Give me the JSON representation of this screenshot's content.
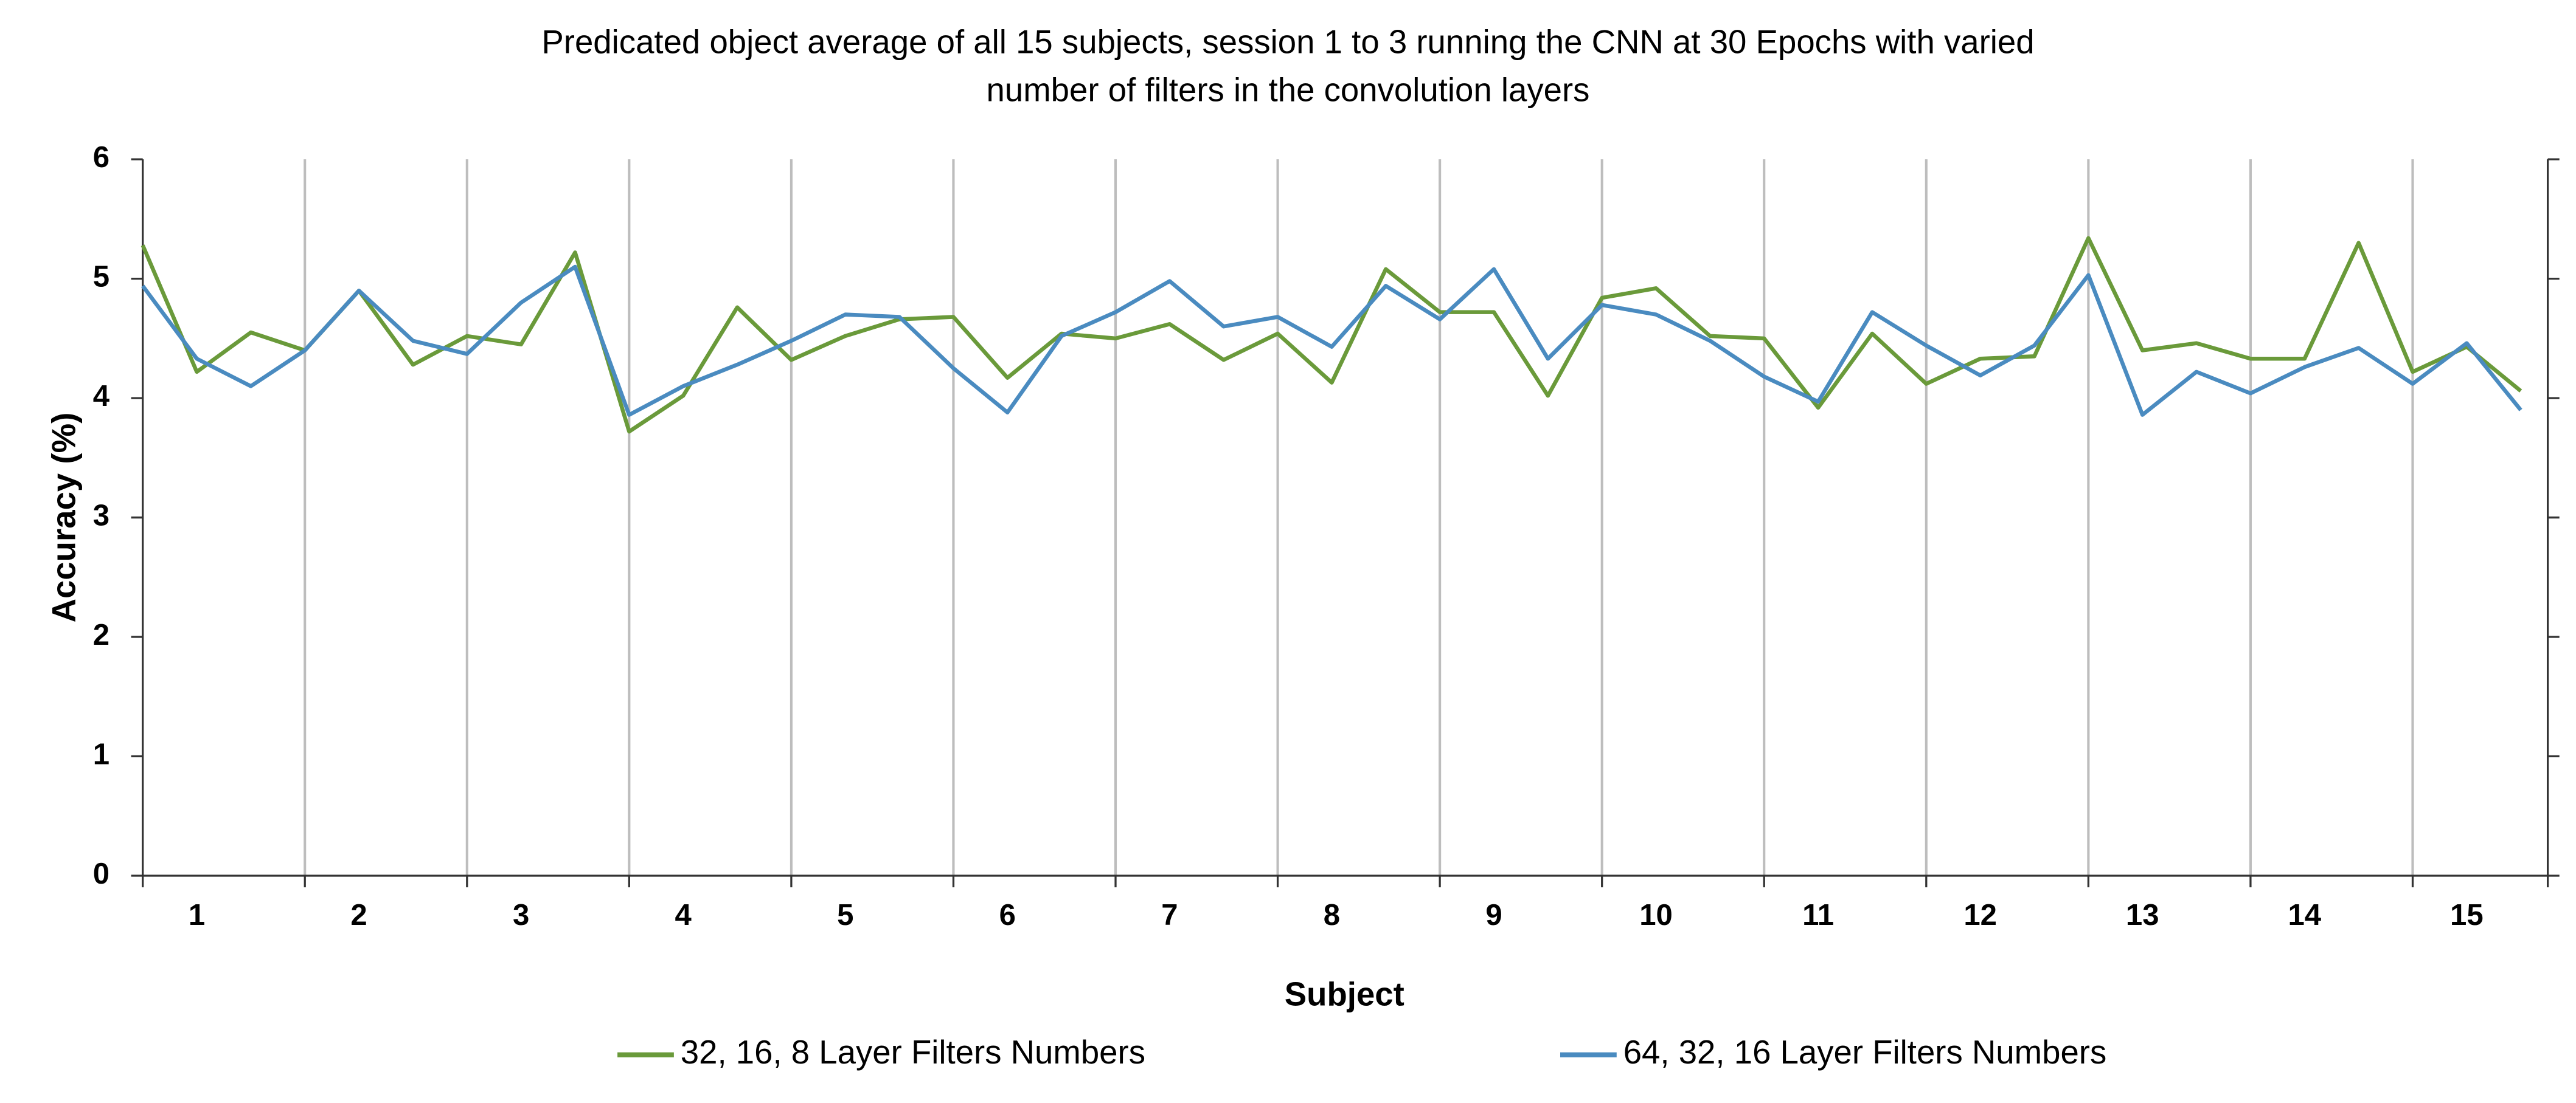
{
  "chart_data": {
    "type": "line",
    "title": "Predicated object average of all 15 subjects, session 1 to 3 running the CNN at 30 Epochs with varied number of filters in the convolution layers",
    "xlabel": "Subject",
    "ylabel": "Accuracy (%)",
    "categories": [
      null,
      "1",
      null,
      null,
      "2",
      null,
      null,
      "3",
      null,
      null,
      "4",
      null,
      null,
      "5",
      null,
      null,
      "6",
      null,
      null,
      "7",
      null,
      null,
      "8",
      null,
      null,
      "9",
      null,
      null,
      "10",
      null,
      null,
      "11",
      null,
      null,
      "12",
      null,
      null,
      "13",
      null,
      null,
      "14",
      null,
      null,
      "15",
      null
    ],
    "series": [
      {
        "name": "32, 16, 8 Layer Filters Numbers",
        "color": "#6a9a3a",
        "values": [
          5.28,
          4.22,
          4.55,
          4.4,
          4.9,
          4.28,
          4.52,
          4.45,
          5.22,
          3.72,
          4.02,
          4.76,
          4.32,
          4.52,
          4.66,
          4.68,
          4.17,
          4.54,
          4.5,
          4.62,
          4.32,
          4.54,
          4.13,
          5.08,
          4.72,
          4.72,
          4.02,
          4.84,
          4.92,
          4.52,
          4.5,
          3.92,
          4.54,
          4.12,
          4.33,
          4.35,
          5.34,
          4.4,
          4.46,
          4.33,
          4.33,
          5.3,
          4.22,
          4.43,
          4.06
        ]
      },
      {
        "name": "64, 32, 16 Layer Filters Numbers",
        "color": "#4a8bc0",
        "values": [
          4.94,
          4.33,
          4.1,
          4.4,
          4.9,
          4.48,
          4.37,
          4.8,
          5.1,
          3.86,
          4.1,
          4.28,
          4.48,
          4.7,
          4.68,
          4.25,
          3.88,
          4.52,
          4.72,
          4.98,
          4.6,
          4.68,
          4.43,
          4.94,
          4.66,
          5.08,
          4.33,
          4.78,
          4.7,
          4.48,
          4.18,
          3.97,
          4.72,
          4.44,
          4.19,
          4.44,
          5.03,
          3.86,
          4.22,
          4.04,
          4.26,
          4.42,
          4.12,
          4.46,
          3.9
        ]
      }
    ],
    "ylim": [
      0,
      6
    ],
    "yticks": [
      0,
      1,
      2,
      3,
      4,
      5,
      6
    ],
    "legend": "bottom"
  }
}
